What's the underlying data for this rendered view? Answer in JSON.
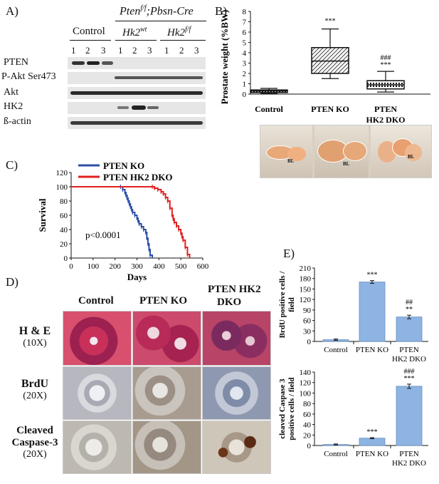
{
  "panelA": {
    "letter": "A)",
    "genotype": "Pten",
    "genotype_sup": "f/f",
    "genotype_rest": ";Pbsn-Cre",
    "groups": [
      "Control",
      "Hk2",
      "Hk2"
    ],
    "group_sups": [
      "",
      "wt",
      "f/f"
    ],
    "lanes": [
      "1",
      "2",
      "3",
      "1",
      "2",
      "3",
      "1",
      "2",
      "3"
    ],
    "rows": [
      "PTEN",
      "P-Akt Ser473",
      "Akt",
      "HK2",
      "ß-actin"
    ]
  },
  "panelB": {
    "letter": "B)",
    "chart_data": {
      "type": "box",
      "ylabel": "Prostate weight (%BW)",
      "ylim": [
        0,
        8
      ],
      "yticks": [
        0,
        1,
        2,
        3,
        4,
        5,
        6,
        7,
        8
      ],
      "categories": [
        "Control",
        "PTEN KO",
        "PTEN HK2 DKO"
      ],
      "category_lines": [
        [
          "Control"
        ],
        [
          "PTEN KO"
        ],
        [
          "PTEN",
          "HK2 DKO"
        ]
      ],
      "boxes": [
        {
          "min": 0.05,
          "q1": 0.15,
          "median": 0.3,
          "q3": 0.4,
          "max": 0.55
        },
        {
          "min": 1.5,
          "q1": 2.0,
          "median": 3.2,
          "q3": 4.5,
          "max": 6.3
        },
        {
          "min": 0.2,
          "q1": 0.5,
          "median": 0.9,
          "q3": 1.3,
          "max": 2.2
        }
      ],
      "annotations": [
        [
          "",
          ""
        ],
        [
          "***",
          ""
        ],
        [
          "###",
          "***"
        ]
      ]
    },
    "photo_labels": [
      "BL",
      "BL",
      "BL"
    ]
  },
  "panelC": {
    "letter": "C)",
    "chart_data": {
      "type": "line",
      "xlabel": "Days",
      "ylabel": "Survival",
      "xlim": [
        0,
        600
      ],
      "ylim": [
        0,
        120
      ],
      "xticks": [
        0,
        100,
        200,
        300,
        400,
        500,
        600
      ],
      "yticks": [
        0,
        20,
        40,
        60,
        80,
        100,
        120
      ],
      "pvalue": "p<0.0001",
      "series": [
        {
          "name": "PTEN KO",
          "color": "#2b4fa8",
          "x": [
            0,
            225,
            235,
            245,
            250,
            255,
            260,
            265,
            270,
            275,
            280,
            290,
            300,
            305,
            310,
            320,
            330,
            340,
            345,
            350,
            355,
            360,
            370
          ],
          "y": [
            100,
            100,
            96,
            92,
            88,
            84,
            80,
            76,
            72,
            68,
            64,
            60,
            56,
            52,
            48,
            44,
            40,
            36,
            28,
            20,
            12,
            4,
            0
          ]
        },
        {
          "name": "PTEN HK2 DKO",
          "color": "#e02020",
          "x": [
            0,
            370,
            380,
            395,
            410,
            420,
            430,
            440,
            450,
            460,
            465,
            470,
            480,
            490,
            500,
            505,
            510,
            520,
            530,
            540
          ],
          "y": [
            100,
            100,
            98,
            96,
            93,
            90,
            85,
            80,
            70,
            60,
            55,
            50,
            45,
            40,
            35,
            30,
            25,
            15,
            5,
            0
          ]
        }
      ]
    }
  },
  "panelD": {
    "letter": "D)",
    "columns": [
      "Control",
      "PTEN KO",
      "PTEN HK2",
      "DKO"
    ],
    "rows": [
      {
        "line1": "H & E",
        "line2": "(10X)"
      },
      {
        "line1": "BrdU",
        "line2": "(20X)"
      },
      {
        "line1": "Cleaved",
        "line1b": "Caspase-3",
        "line2": "(20X)"
      }
    ]
  },
  "panelE": {
    "letter": "E)",
    "chart_data": [
      {
        "type": "bar",
        "ylabel_lines": [
          "BrdU positive cells /",
          "field"
        ],
        "ylim": [
          0,
          210
        ],
        "yticks": [
          0,
          30,
          60,
          90,
          120,
          150,
          180,
          210
        ],
        "categories": [
          "Control",
          "PTEN KO",
          "PTEN HK2 DKO"
        ],
        "category_lines": [
          [
            "Control"
          ],
          [
            "PTEN KO"
          ],
          [
            "PTEN",
            "HK2 DKO"
          ]
        ],
        "values": [
          5,
          170,
          70
        ],
        "errors": [
          2,
          4,
          5
        ],
        "annotations": [
          [
            "",
            ""
          ],
          [
            "***",
            ""
          ],
          [
            "##",
            "**"
          ]
        ],
        "color": "#8db4e2"
      },
      {
        "type": "bar",
        "ylabel_lines": [
          "cleaved Caspase 3",
          "positive cells / field"
        ],
        "ylim": [
          0,
          140
        ],
        "yticks": [
          0,
          20,
          40,
          60,
          80,
          100,
          120,
          140
        ],
        "categories": [
          "Control",
          "PTEN KO",
          "PTEN HK2 DKO"
        ],
        "category_lines": [
          [
            "Control"
          ],
          [
            "PTEN KO"
          ],
          [
            "PTEN",
            "HK2 DKO"
          ]
        ],
        "values": [
          2,
          14,
          113
        ],
        "errors": [
          1,
          1,
          4
        ],
        "annotations": [
          [
            "",
            ""
          ],
          [
            "***",
            ""
          ],
          [
            "###",
            "***"
          ]
        ],
        "color": "#8db4e2"
      }
    ]
  }
}
